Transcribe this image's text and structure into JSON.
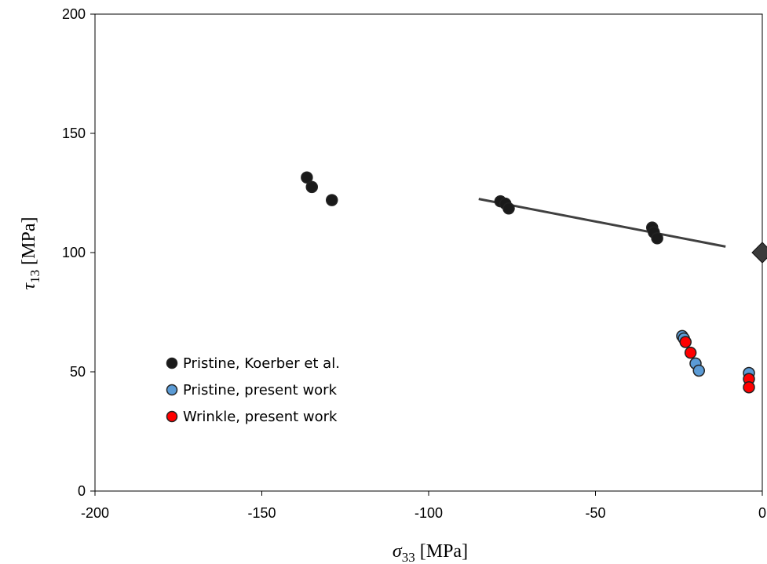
{
  "chart_data": {
    "type": "scatter",
    "xlabel_symbol": "σ",
    "xlabel_sub": "33",
    "xlabel_unit": " [MPa]",
    "ylabel_symbol": "τ",
    "ylabel_sub": "13",
    "ylabel_unit": " [MPa]",
    "xlim": [
      -200,
      0
    ],
    "ylim": [
      0,
      200
    ],
    "xticks": [
      -200,
      -150,
      -100,
      -50,
      0
    ],
    "yticks": [
      0,
      50,
      100,
      150,
      200
    ],
    "grid": false,
    "legend_position": "left",
    "series": [
      {
        "name": "Pristine, Koerber et al.",
        "color": "#1a1a1a",
        "marker": "circle",
        "points": [
          [
            -136.5,
            131.5
          ],
          [
            -135,
            127.5
          ],
          [
            -129,
            122
          ],
          [
            -78.5,
            121.5
          ],
          [
            -77,
            120.5
          ],
          [
            -76,
            118.5
          ],
          [
            -33,
            110.5
          ],
          [
            -32.5,
            108.5
          ],
          [
            -31.5,
            106
          ]
        ]
      },
      {
        "name": "Pristine, present work",
        "color": "#5b9bd5",
        "marker": "circle",
        "points": [
          [
            -24,
            65
          ],
          [
            -23.5,
            64
          ],
          [
            -20,
            53.5
          ],
          [
            -19,
            50.5
          ],
          [
            -4,
            49.5
          ]
        ]
      },
      {
        "name": "Wrinkle, present work",
        "color": "#ff0000",
        "marker": "circle",
        "points": [
          [
            -23,
            62.5
          ],
          [
            -21.5,
            58
          ],
          [
            -4,
            47
          ],
          [
            -4,
            43.5
          ]
        ]
      },
      {
        "name": "",
        "color": "#3a3a3a",
        "marker": "diamond",
        "points": [
          [
            0,
            100
          ]
        ]
      }
    ],
    "trend_line": {
      "color": "#404040",
      "points": [
        [
          -85,
          122.5
        ],
        [
          -11,
          102.5
        ]
      ]
    }
  }
}
